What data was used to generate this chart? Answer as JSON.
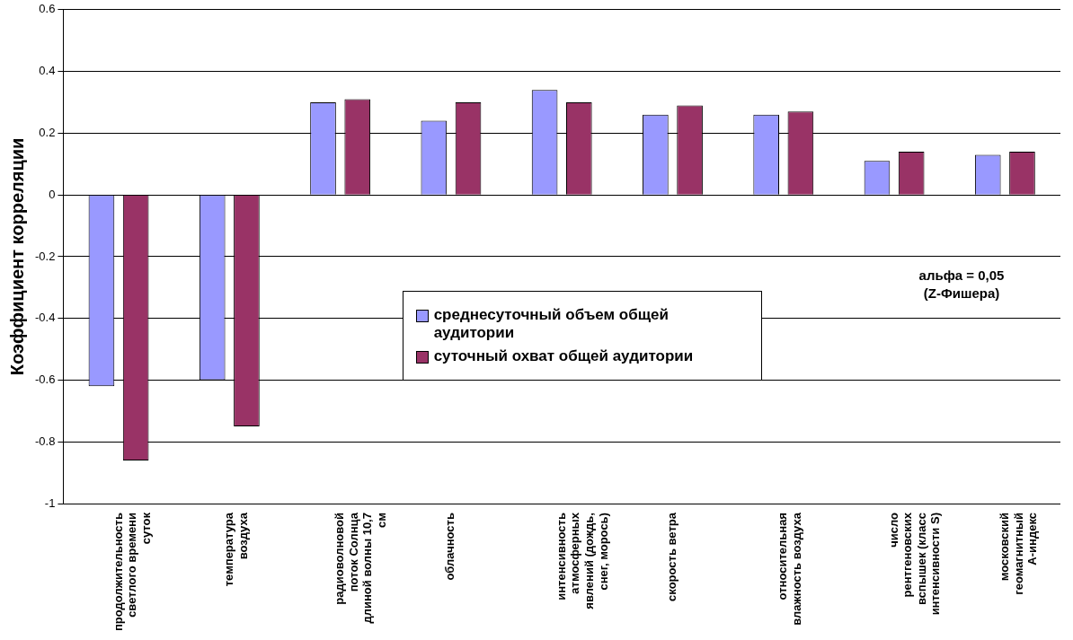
{
  "chart_data": {
    "type": "bar",
    "ylabel": "Коэффициент корреляции",
    "categories": [
      "продолжительность светлого времени суток",
      "температура воздуха",
      "радиоволновой поток Солнца длиной волны 10,7 см",
      "облачность",
      "интенсивность атмосферных явлений (дождь, снег, морось)",
      "скорость ветра",
      "относительная влажность воздуха",
      "число рентгеновских вспышек (класс интенсивности S)",
      "московский геомагнитный А-индекс"
    ],
    "series": [
      {
        "name": "среднесуточный объем общей аудитории",
        "color": "#9999ff",
        "values": [
          -0.62,
          -0.6,
          0.3,
          0.24,
          0.34,
          0.26,
          0.26,
          0.11,
          0.13
        ]
      },
      {
        "name": "суточный охват общей аудитории",
        "color": "#993366",
        "values": [
          -0.86,
          -0.75,
          0.31,
          0.3,
          0.3,
          0.29,
          0.27,
          0.14,
          0.14
        ]
      }
    ],
    "ylim": [
      -1,
      0.6
    ],
    "yticks": [
      0.6,
      0.4,
      0.2,
      0,
      -0.2,
      -0.4,
      -0.6,
      -0.8,
      -1
    ],
    "grid": "y",
    "legend": "center",
    "annotations": [
      "альфа = 0,05 (Z-Фишера)"
    ]
  }
}
